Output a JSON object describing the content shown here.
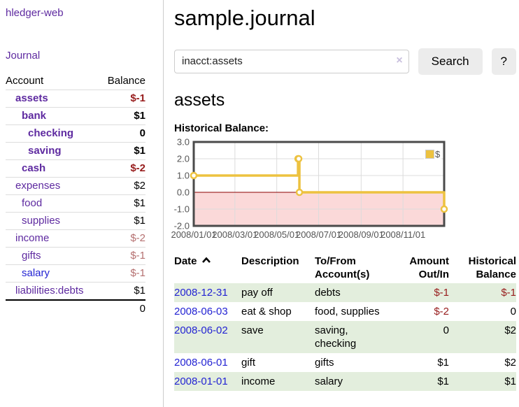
{
  "app": {
    "brand": "hledger-web",
    "nav_journal": "Journal"
  },
  "sidebar": {
    "headers": {
      "account": "Account",
      "balance": "Balance"
    },
    "accounts": [
      {
        "name": "assets",
        "balance": "$-1",
        "depth": 0
      },
      {
        "name": "bank",
        "balance": "$1",
        "depth": 1
      },
      {
        "name": "checking",
        "balance": "0",
        "depth": 2
      },
      {
        "name": "saving",
        "balance": "$1",
        "depth": 2
      },
      {
        "name": "cash",
        "balance": "$-2",
        "depth": 1
      },
      {
        "name": "expenses",
        "balance": "$2",
        "depth": 0
      },
      {
        "name": "food",
        "balance": "$1",
        "depth": 1
      },
      {
        "name": "supplies",
        "balance": "$1",
        "depth": 1
      },
      {
        "name": "income",
        "balance": "$-2",
        "depth": 0
      },
      {
        "name": "gifts",
        "balance": "$-1",
        "depth": 1
      },
      {
        "name": "salary",
        "balance": "$-1",
        "depth": 1
      },
      {
        "name": "liabilities:debts",
        "balance": "$1",
        "depth": 0
      }
    ],
    "total": "0"
  },
  "main": {
    "title": "sample.journal",
    "search": {
      "value": "inacct:assets",
      "clear_icon": "×",
      "button": "Search",
      "help": "?"
    },
    "account_heading": "assets",
    "chart_label": "Historical Balance:"
  },
  "chart_data": {
    "type": "line",
    "title": "Historical Balance:",
    "step": true,
    "series": [
      {
        "name": "$",
        "points": [
          {
            "date": "2008/01/01",
            "balance": 1
          },
          {
            "date": "2008/06/01",
            "balance": 2
          },
          {
            "date": "2008/06/02",
            "balance": 2
          },
          {
            "date": "2008/06/03",
            "balance": 0
          },
          {
            "date": "2008/12/31",
            "balance": -1
          }
        ]
      }
    ],
    "xlim": [
      "2008/01/01",
      "2008/12/31"
    ],
    "ylim": [
      -2,
      3
    ],
    "x_ticks": [
      "2008/01/01",
      "2008/03/01",
      "2008/05/01",
      "2008/07/01",
      "2008/09/01",
      "2008/11/01"
    ],
    "y_ticks": [
      3,
      2,
      1,
      0,
      -1,
      -2
    ],
    "y_tick_labels": [
      "3.0",
      "2.0",
      "1.0",
      "0.0",
      "-1.0",
      "-2.0"
    ],
    "grid": true,
    "legend_position": "top-right",
    "colors": {
      "series": "#edc240",
      "negative_region": "#fbd9d9",
      "zero_line": "#8b0000",
      "grid": "#dcdcdc",
      "border": "#4a4a4a",
      "tick_text": "#545454"
    }
  },
  "register": {
    "headers": {
      "date": "Date",
      "description": "Description",
      "accounts": "To/From\nAccount(s)",
      "amount": "Amount\nOut/In",
      "balance": "Historical\nBalance"
    },
    "rows": [
      {
        "date": "2008-12-31",
        "description": "pay off",
        "accounts": "debts",
        "amount": "$-1",
        "balance": "$-1"
      },
      {
        "date": "2008-06-03",
        "description": "eat & shop",
        "accounts": "food, supplies",
        "amount": "$-2",
        "balance": "0"
      },
      {
        "date": "2008-06-02",
        "description": "save",
        "accounts": "saving,\nchecking",
        "amount": "0",
        "balance": "$2"
      },
      {
        "date": "2008-06-01",
        "description": "gift",
        "accounts": "gifts",
        "amount": "$1",
        "balance": "$2"
      },
      {
        "date": "2008-01-01",
        "description": "income",
        "accounts": "salary",
        "amount": "$1",
        "balance": "$1"
      }
    ]
  }
}
